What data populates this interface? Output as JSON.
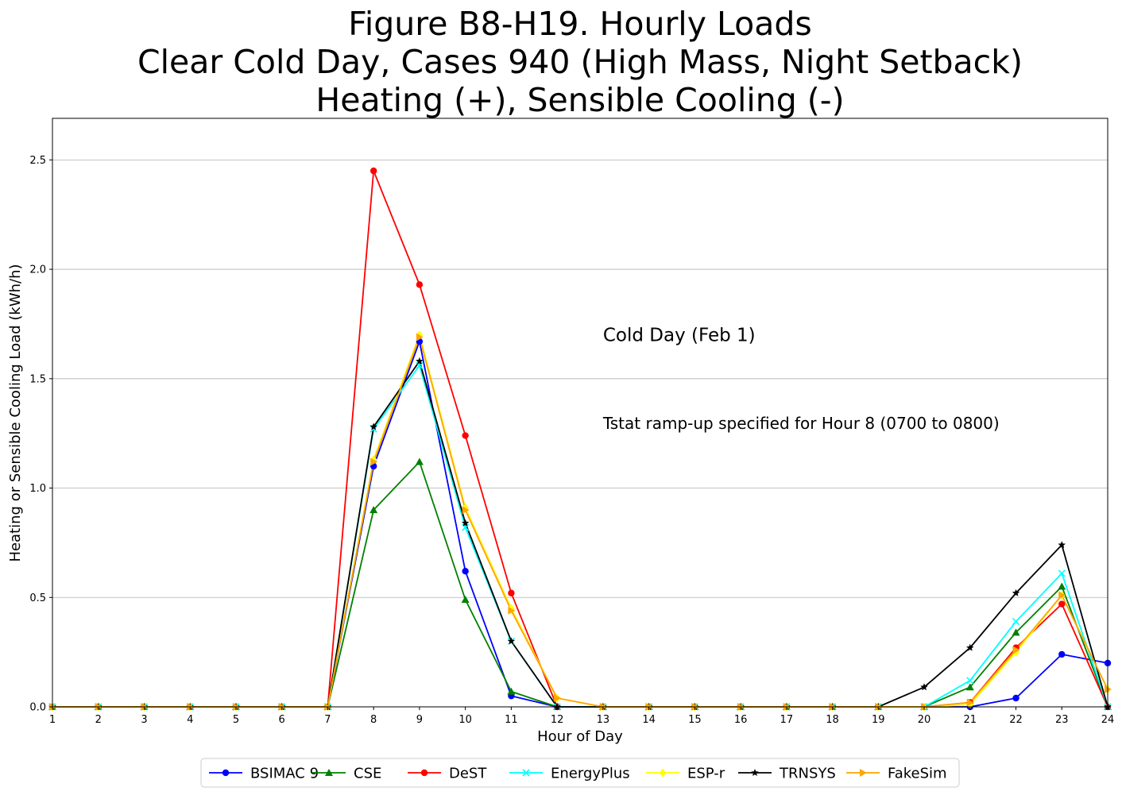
{
  "chart_data": {
    "type": "line",
    "title": [
      "Figure B8-H19. Hourly Loads",
      "Clear Cold Day, Cases 940 (High Mass, Night Setback)",
      "Heating (+), Sensible Cooling (-)"
    ],
    "xlabel": "Hour of Day",
    "ylabel": "Heating or Sensible Cooling Load (kWh/h)",
    "x": [
      1,
      2,
      3,
      4,
      5,
      6,
      7,
      8,
      9,
      10,
      11,
      12,
      13,
      14,
      15,
      16,
      17,
      18,
      19,
      20,
      21,
      22,
      23,
      24
    ],
    "xlim": [
      1,
      24
    ],
    "ylim": [
      0,
      2.69
    ],
    "yticks": [
      0.0,
      0.5,
      1.0,
      1.5,
      2.0,
      2.5
    ],
    "ytick_labels": [
      "0.0",
      "0.5",
      "1.0",
      "1.5",
      "2.0",
      "2.5"
    ],
    "grid": "horizontal",
    "legend_position": "bottom-center, outside",
    "annotations": [
      {
        "text": "Cold Day (Feb 1)",
        "x": 13,
        "y": 1.7,
        "size": "large"
      },
      {
        "text": "Tstat ramp-up specified for Hour 8 (0700 to 0800)",
        "x": 13,
        "y": 1.3,
        "size": "medium"
      }
    ],
    "series": [
      {
        "name": "BSIMAC 9",
        "color": "#0000ff",
        "marker": "circle",
        "values": [
          0,
          0,
          0,
          0,
          0,
          0,
          0,
          1.1,
          1.67,
          0.62,
          0.05,
          0,
          0,
          0,
          0,
          0,
          0,
          0,
          0,
          0,
          0,
          0.04,
          0.24,
          0.2
        ]
      },
      {
        "name": "CSE",
        "color": "#008000",
        "marker": "triangle-up",
        "values": [
          0,
          0,
          0,
          0,
          0,
          0,
          0,
          0.9,
          1.12,
          0.49,
          0.07,
          0,
          0,
          0,
          0,
          0,
          0,
          0,
          0,
          0,
          0.09,
          0.34,
          0.55,
          0
        ]
      },
      {
        "name": "DeST",
        "color": "#ff0000",
        "marker": "circle",
        "values": [
          0,
          0,
          0,
          0,
          0,
          0,
          0,
          2.45,
          1.93,
          1.24,
          0.52,
          0,
          0,
          0,
          0,
          0,
          0,
          0,
          0,
          0,
          0.02,
          0.27,
          0.47,
          0
        ]
      },
      {
        "name": "EnergyPlus",
        "color": "#00ffff",
        "marker": "x",
        "values": [
          0,
          0,
          0,
          0,
          0,
          0,
          0,
          1.27,
          1.56,
          0.82,
          0.3,
          0,
          0,
          0,
          0,
          0,
          0,
          0,
          0,
          0,
          0.12,
          0.39,
          0.61,
          0
        ]
      },
      {
        "name": "ESP-r",
        "color": "#ffff00",
        "marker": "diamond",
        "values": [
          0,
          0,
          0,
          0,
          0,
          0,
          0,
          1.13,
          1.7,
          0.91,
          0.45,
          0.04,
          0,
          0,
          0,
          0,
          0,
          0,
          0,
          0,
          0.01,
          0.25,
          0.51,
          0.08
        ]
      },
      {
        "name": "TRNSYS",
        "color": "#000000",
        "marker": "star",
        "values": [
          0,
          0,
          0,
          0,
          0,
          0,
          0,
          1.28,
          1.58,
          0.84,
          0.3,
          0,
          0,
          0,
          0,
          0,
          0,
          0,
          0,
          0.09,
          0.27,
          0.52,
          0.74,
          0
        ]
      },
      {
        "name": "FakeSim",
        "color": "#ffa500",
        "marker": "triangle-right",
        "values": [
          0,
          0,
          0,
          0,
          0,
          0,
          0,
          1.12,
          1.69,
          0.9,
          0.44,
          0.04,
          0,
          0,
          0,
          0,
          0,
          0,
          0,
          0,
          0.02,
          0.26,
          0.51,
          0.08
        ]
      }
    ]
  }
}
